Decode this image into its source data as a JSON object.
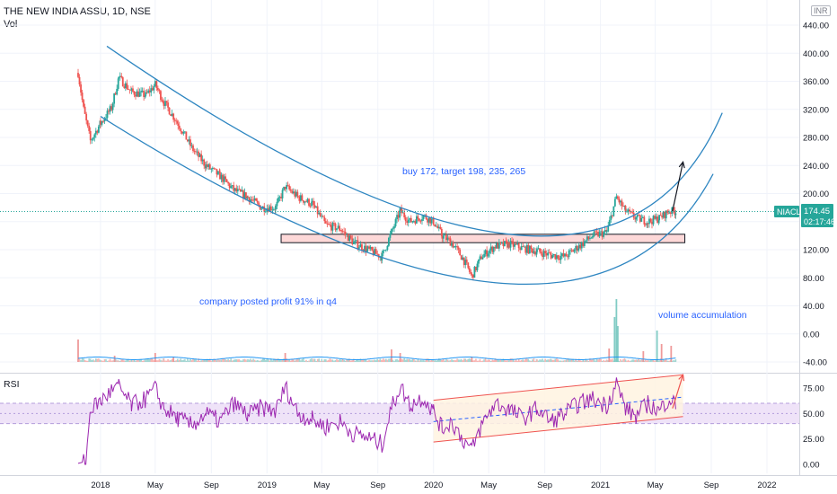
{
  "header": {
    "symbol_line": "THE NEW INDIA ASSU, 1D, NSE",
    "vol_label": "Vol",
    "currency_badge": "INR"
  },
  "last_price": {
    "ticker": "NIACL",
    "price": "174.45",
    "countdown": "02:17:46",
    "color": "#26a69a"
  },
  "annotations": {
    "trade_plan": "buy 172, target 198, 235, 265",
    "profit_note": "company posted profit 91% in q4",
    "volume_note": "volume accumulation"
  },
  "rsi_panel": {
    "label": "RSI",
    "ticks": [
      "75.00",
      "50.00",
      "25.00",
      "0.00"
    ]
  },
  "colors": {
    "up": "#26a69a",
    "down": "#ef5350",
    "channel": "#2e86c1",
    "rsi_line": "#9c27b0",
    "zone": "#fdd8d8",
    "rsi_band": "#ede0f7"
  },
  "chart_data": {
    "type": "candlestick",
    "price_axis": {
      "ticks": [
        "440.00",
        "400.00",
        "360.00",
        "320.00",
        "280.00",
        "240.00",
        "200.00",
        "160.00",
        "120.00",
        "80.00",
        "40.00",
        "0.00",
        "-40.00"
      ],
      "range": [
        -45,
        455
      ]
    },
    "time_axis": {
      "ticks": [
        "2018",
        "May",
        "Sep",
        "2019",
        "May",
        "Sep",
        "2020",
        "May",
        "Sep",
        "2021",
        "May",
        "Sep",
        "2022"
      ]
    },
    "price_path": [
      [
        "2017-11-13",
        372
      ],
      [
        "2017-11-25",
        320
      ],
      [
        "2017-12-10",
        275
      ],
      [
        "2018-01-01",
        300
      ],
      [
        "2018-01-25",
        322
      ],
      [
        "2018-02-10",
        365
      ],
      [
        "2018-03-10",
        345
      ],
      [
        "2018-04-10",
        340
      ],
      [
        "2018-05-01",
        355
      ],
      [
        "2018-05-20",
        330
      ],
      [
        "2018-06-20",
        300
      ],
      [
        "2018-07-20",
        265
      ],
      [
        "2018-08-20",
        240
      ],
      [
        "2018-09-20",
        225
      ],
      [
        "2018-10-20",
        205
      ],
      [
        "2018-11-20",
        195
      ],
      [
        "2018-12-20",
        180
      ],
      [
        "2019-01-20",
        180
      ],
      [
        "2019-02-10",
        210
      ],
      [
        "2019-03-10",
        195
      ],
      [
        "2019-04-10",
        185
      ],
      [
        "2019-05-10",
        155
      ],
      [
        "2019-06-10",
        150
      ],
      [
        "2019-07-10",
        130
      ],
      [
        "2019-08-10",
        120
      ],
      [
        "2019-09-10",
        110
      ],
      [
        "2019-10-01",
        145
      ],
      [
        "2019-10-20",
        175
      ],
      [
        "2019-11-10",
        160
      ],
      [
        "2019-12-10",
        168
      ],
      [
        "2020-01-01",
        160
      ],
      [
        "2020-01-20",
        140
      ],
      [
        "2020-02-10",
        130
      ],
      [
        "2020-03-05",
        108
      ],
      [
        "2020-03-25",
        82
      ],
      [
        "2020-04-15",
        110
      ],
      [
        "2020-05-15",
        125
      ],
      [
        "2020-06-15",
        128
      ],
      [
        "2020-07-15",
        122
      ],
      [
        "2020-08-15",
        118
      ],
      [
        "2020-09-15",
        112
      ],
      [
        "2020-10-15",
        110
      ],
      [
        "2020-11-15",
        125
      ],
      [
        "2020-12-15",
        140
      ],
      [
        "2021-01-15",
        145
      ],
      [
        "2021-02-05",
        195
      ],
      [
        "2021-02-25",
        175
      ],
      [
        "2021-03-20",
        165
      ],
      [
        "2021-04-15",
        160
      ],
      [
        "2021-05-10",
        165
      ],
      [
        "2021-06-01",
        175
      ],
      [
        "2021-06-15",
        174.45
      ]
    ],
    "volume_spikes": [
      [
        "2017-11-13",
        25
      ],
      [
        "2018-02-01",
        7
      ],
      [
        "2018-05-01",
        10
      ],
      [
        "2018-06-10",
        6
      ],
      [
        "2019-02-10",
        10
      ],
      [
        "2019-10-01",
        14
      ],
      [
        "2019-10-20",
        10
      ],
      [
        "2020-03-25",
        6
      ],
      [
        "2021-01-20",
        15
      ],
      [
        "2021-02-01",
        50
      ],
      [
        "2021-02-05",
        70
      ],
      [
        "2021-02-08",
        40
      ],
      [
        "2021-04-05",
        12
      ],
      [
        "2021-05-05",
        35
      ],
      [
        "2021-05-15",
        20
      ],
      [
        "2021-06-05",
        18
      ]
    ],
    "volume_zero_price": -40,
    "rsi_axis": {
      "range": [
        0,
        100
      ],
      "band": [
        40,
        60
      ]
    },
    "rsi_path": [
      [
        "2017-11-13",
        1
      ],
      [
        "2017-11-30",
        3
      ],
      [
        "2017-12-10",
        55
      ],
      [
        "2018-01-01",
        62
      ],
      [
        "2018-01-25",
        72
      ],
      [
        "2018-02-10",
        76
      ],
      [
        "2018-03-10",
        58
      ],
      [
        "2018-04-10",
        64
      ],
      [
        "2018-05-01",
        74
      ],
      [
        "2018-05-20",
        55
      ],
      [
        "2018-06-20",
        45
      ],
      [
        "2018-07-20",
        38
      ],
      [
        "2018-08-20",
        50
      ],
      [
        "2018-09-20",
        42
      ],
      [
        "2018-10-20",
        60
      ],
      [
        "2018-11-20",
        48
      ],
      [
        "2018-12-20",
        56
      ],
      [
        "2019-01-20",
        52
      ],
      [
        "2019-02-10",
        76
      ],
      [
        "2019-03-10",
        50
      ],
      [
        "2019-04-10",
        44
      ],
      [
        "2019-05-10",
        37
      ],
      [
        "2019-06-10",
        42
      ],
      [
        "2019-07-10",
        30
      ],
      [
        "2019-08-10",
        26
      ],
      [
        "2019-09-10",
        20
      ],
      [
        "2019-10-01",
        55
      ],
      [
        "2019-10-20",
        77
      ],
      [
        "2019-11-10",
        58
      ],
      [
        "2019-12-10",
        66
      ],
      [
        "2020-01-01",
        52
      ],
      [
        "2020-01-20",
        35
      ],
      [
        "2020-02-10",
        42
      ],
      [
        "2020-03-05",
        25
      ],
      [
        "2020-03-25",
        14
      ],
      [
        "2020-04-15",
        38
      ],
      [
        "2020-05-15",
        60
      ],
      [
        "2020-06-15",
        54
      ],
      [
        "2020-07-15",
        45
      ],
      [
        "2020-08-15",
        55
      ],
      [
        "2020-09-15",
        42
      ],
      [
        "2020-10-15",
        50
      ],
      [
        "2020-11-15",
        60
      ],
      [
        "2020-12-15",
        64
      ],
      [
        "2021-01-15",
        58
      ],
      [
        "2021-02-05",
        80
      ],
      [
        "2021-02-25",
        55
      ],
      [
        "2021-03-20",
        47
      ],
      [
        "2021-04-15",
        60
      ],
      [
        "2021-05-10",
        52
      ],
      [
        "2021-06-01",
        66
      ],
      [
        "2021-06-15",
        57
      ]
    ],
    "drawings": {
      "upper_channel_curve": [
        [
          "2018-01-15",
          410
        ],
        [
          "2020-06-15",
          142
        ],
        [
          "2021-09-25",
          315
        ]
      ],
      "lower_channel_curve": [
        [
          "2018-01-01",
          310
        ],
        [
          "2020-05-15",
          73
        ],
        [
          "2021-09-05",
          228
        ]
      ],
      "support_zone": {
        "from": "2019-02-01",
        "to": "2021-07-05",
        "low": 130,
        "high": 142
      },
      "projection_arrow": [
        [
          "2021-06-08",
          175
        ],
        [
          "2021-07-01",
          245
        ]
      ],
      "rsi_channel_upper": [
        [
          "2020-01-01",
          63
        ],
        [
          "2021-07-01",
          88
        ]
      ],
      "rsi_channel_mid": [
        [
          "2020-01-01",
          42
        ],
        [
          "2021-07-01",
          66
        ]
      ],
      "rsi_channel_lower": [
        [
          "2020-01-01",
          22
        ],
        [
          "2021-07-01",
          47
        ]
      ],
      "rsi_projection_arrow": [
        [
          "2021-06-08",
          55
        ],
        [
          "2021-07-01",
          88
        ]
      ]
    }
  }
}
